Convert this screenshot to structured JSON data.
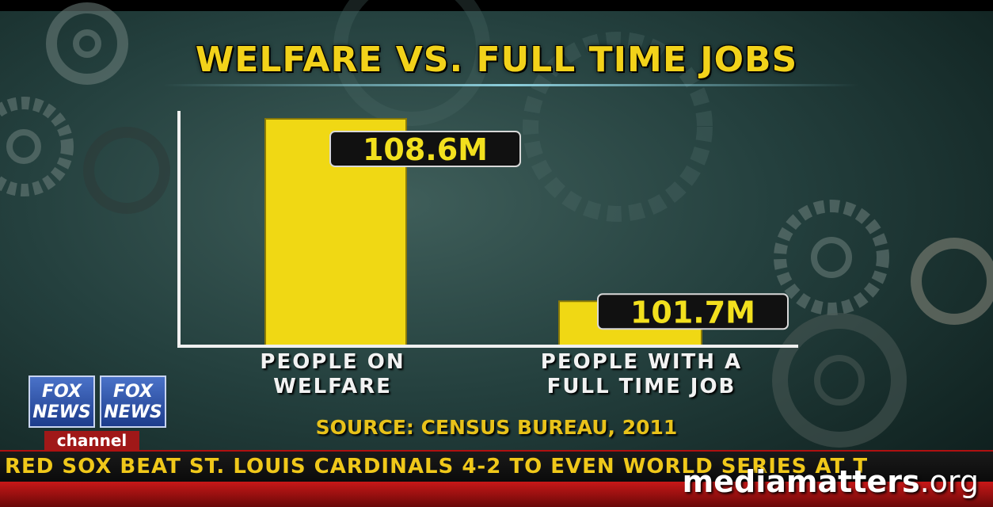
{
  "chart_data": {
    "type": "bar",
    "title": "WELFARE VS. FULL TIME JOBS",
    "categories": [
      "PEOPLE ON WELFARE",
      "PEOPLE WITH A FULL TIME JOB"
    ],
    "category_lines": [
      [
        "PEOPLE ON",
        "WELFARE"
      ],
      [
        "PEOPLE WITH A",
        "FULL TIME JOB"
      ]
    ],
    "values": [
      108.6,
      101.7
    ],
    "data_labels": [
      "108.6M",
      "101.7M"
    ],
    "baseline": 100,
    "ylim": [
      100,
      109.2
    ],
    "bar_color": "#f0d814",
    "grid": false,
    "source": "SOURCE: CENSUS BUREAU, 2011"
  },
  "logo": {
    "fox": "FOX",
    "news": "NEWS",
    "channel": "channel"
  },
  "ticker": "RED SOX BEAT ST. LOUIS CARDINALS 4-2 TO EVEN WORLD SERIES AT T",
  "watermark": {
    "bold": "mediamatters",
    "light": ".org"
  },
  "colors": {
    "title": "#f2d21a",
    "ticker_text": "#f0c81a",
    "accent_red": "#c81818"
  }
}
